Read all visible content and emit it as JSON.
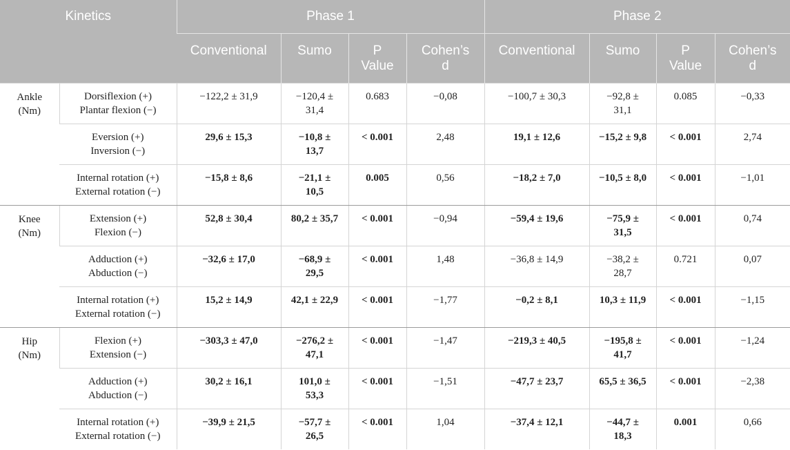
{
  "header": {
    "kinetics": "Kinetics",
    "phase1": "Phase 1",
    "phase2": "Phase 2",
    "cols": [
      "Conventional",
      "Sumo",
      "P\nValue",
      "Cohen’s\nd",
      "Conventional",
      "Sumo",
      "P\nValue",
      "Cohen’s\nd"
    ]
  },
  "groups": [
    {
      "joint": "Ankle\n(Nm)",
      "rows": [
        {
          "measure": "Dorsiflexion (+)\nPlantar flexion (−)",
          "cells": [
            [
              "−122,2 ± 31,9",
              false
            ],
            [
              "−120,4 ±\n31,4",
              false
            ],
            [
              "0.683",
              false
            ],
            [
              "−0,08",
              false
            ],
            [
              "−100,7 ± 30,3",
              false
            ],
            [
              "−92,8 ±\n31,1",
              false
            ],
            [
              "0.085",
              false
            ],
            [
              "−0,33",
              false
            ]
          ]
        },
        {
          "measure": "Eversion (+)\nInversion (−)",
          "cells": [
            [
              "29,6 ± 15,3",
              true
            ],
            [
              "−10,8 ±\n13,7",
              true
            ],
            [
              "< 0.001",
              true
            ],
            [
              "2,48",
              false
            ],
            [
              "19,1 ± 12,6",
              true
            ],
            [
              "−15,2 ± 9,8",
              true
            ],
            [
              "< 0.001",
              true
            ],
            [
              "2,74",
              false
            ]
          ]
        },
        {
          "measure": "Internal rotation (+)\nExternal rotation (−)",
          "cells": [
            [
              "−15,8 ± 8,6",
              true
            ],
            [
              "−21,1 ±\n10,5",
              true
            ],
            [
              "0.005",
              true
            ],
            [
              "0,56",
              false
            ],
            [
              "−18,2 ± 7,0",
              true
            ],
            [
              "−10,5 ± 8,0",
              true
            ],
            [
              "< 0.001",
              true
            ],
            [
              "−1,01",
              false
            ]
          ]
        }
      ]
    },
    {
      "joint": "Knee\n(Nm)",
      "rows": [
        {
          "measure": "Extension (+)\nFlexion (−)",
          "cells": [
            [
              "52,8 ± 30,4",
              true
            ],
            [
              "80,2 ± 35,7",
              true
            ],
            [
              "< 0.001",
              true
            ],
            [
              "−0,94",
              false
            ],
            [
              "−59,4 ± 19,6",
              true
            ],
            [
              "−75,9 ±\n31,5",
              true
            ],
            [
              "< 0.001",
              true
            ],
            [
              "0,74",
              false
            ]
          ]
        },
        {
          "measure": "Adduction (+)\nAbduction (−)",
          "cells": [
            [
              "−32,6 ± 17,0",
              true
            ],
            [
              "−68,9 ±\n29,5",
              true
            ],
            [
              "< 0.001",
              true
            ],
            [
              "1,48",
              false
            ],
            [
              "−36,8 ± 14,9",
              false
            ],
            [
              "−38,2 ±\n28,7",
              false
            ],
            [
              "0.721",
              false
            ],
            [
              "0,07",
              false
            ]
          ]
        },
        {
          "measure": "Internal rotation (+)\nExternal rotation (−)",
          "cells": [
            [
              "15,2 ± 14,9",
              true
            ],
            [
              "42,1 ± 22,9",
              true
            ],
            [
              "< 0.001",
              true
            ],
            [
              "−1,77",
              false
            ],
            [
              "−0,2 ± 8,1",
              true
            ],
            [
              "10,3 ± 11,9",
              true
            ],
            [
              "< 0.001",
              true
            ],
            [
              "−1,15",
              false
            ]
          ]
        }
      ]
    },
    {
      "joint": "Hip\n(Nm)",
      "rows": [
        {
          "measure": "Flexion (+)\nExtension (−)",
          "cells": [
            [
              "−303,3 ± 47,0",
              true
            ],
            [
              "−276,2 ±\n47,1",
              true
            ],
            [
              "< 0.001",
              true
            ],
            [
              "−1,47",
              false
            ],
            [
              "−219,3 ± 40,5",
              true
            ],
            [
              "−195,8 ±\n41,7",
              true
            ],
            [
              "< 0.001",
              true
            ],
            [
              "−1,24",
              false
            ]
          ]
        },
        {
          "measure": "Adduction (+)\nAbduction (−)",
          "cells": [
            [
              "30,2 ± 16,1",
              true
            ],
            [
              "101,0 ±\n53,3",
              true
            ],
            [
              "< 0.001",
              true
            ],
            [
              "−1,51",
              false
            ],
            [
              "−47,7 ± 23,7",
              true
            ],
            [
              "65,5 ± 36,5",
              true
            ],
            [
              "< 0.001",
              true
            ],
            [
              "−2,38",
              false
            ]
          ]
        },
        {
          "measure": "Internal rotation (+)\nExternal rotation (−)",
          "cells": [
            [
              "−39,9 ± 21,5",
              true
            ],
            [
              "−57,7 ±\n26,5",
              true
            ],
            [
              "< 0.001",
              true
            ],
            [
              "1,04",
              false
            ],
            [
              "−37,4 ± 12,1",
              true
            ],
            [
              "−44,7 ±\n18,3",
              true
            ],
            [
              "0.001",
              true
            ],
            [
              "0,66",
              false
            ]
          ]
        }
      ]
    }
  ]
}
